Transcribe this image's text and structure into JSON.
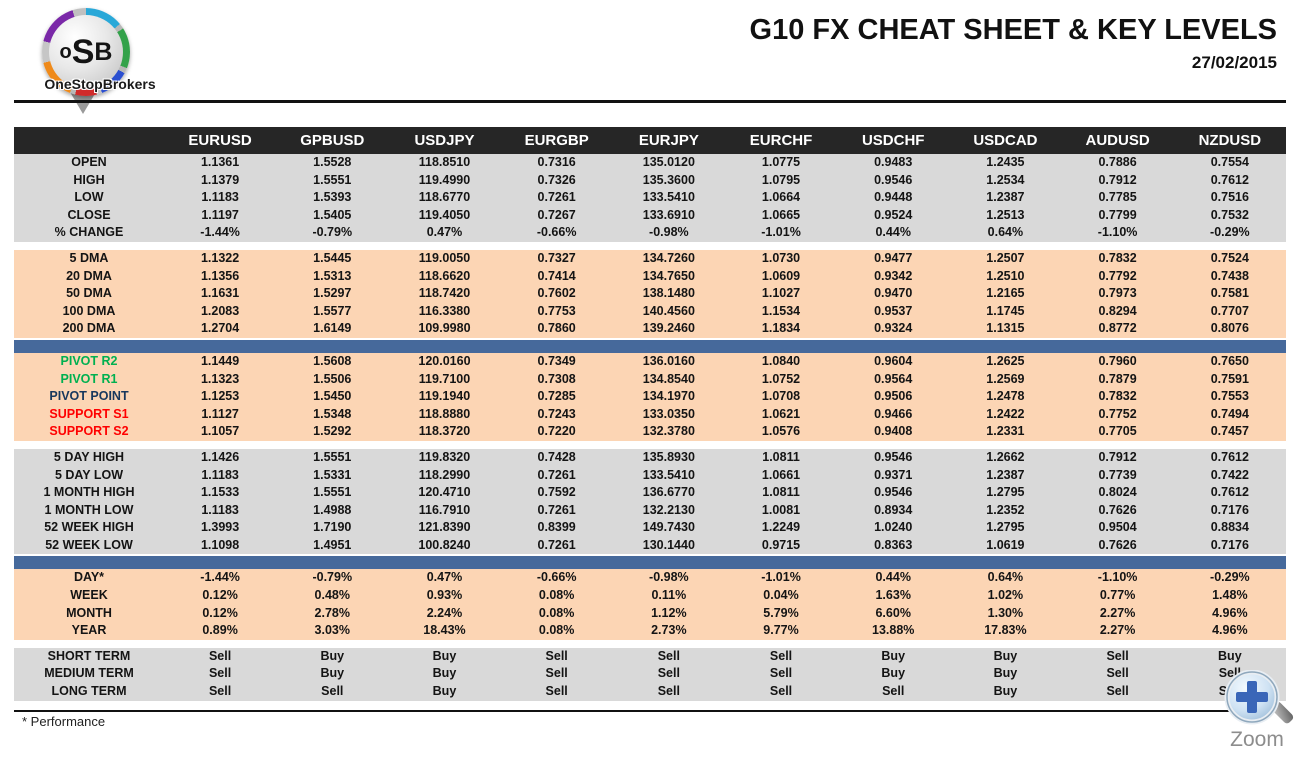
{
  "brand": {
    "logo_l1": "o",
    "logo_l2": "S",
    "logo_l3": "B",
    "name": "OneStopBrokers"
  },
  "header": {
    "title": "G10 FX CHEAT SHEET & KEY LEVELS",
    "date": "27/02/2015"
  },
  "footer": {
    "note": "* Performance",
    "zoom_label": "Zoom"
  },
  "colors": {
    "header-bg": "#262626",
    "gray-band": "#d9d9d9",
    "peach-band": "#fcd5b4",
    "divider-blue": "#46699b",
    "buy": "#00b050",
    "sell": "#ff0000",
    "navy": "#17375d"
  },
  "table": {
    "columns": [
      "EURUSD",
      "GPBUSD",
      "USDJPY",
      "EURGBP",
      "EURJPY",
      "EURCHF",
      "USDCHF",
      "USDCAD",
      "AUDUSD",
      "NZDUSD"
    ],
    "sections": [
      {
        "type": "rows",
        "bg": "gray",
        "rows": [
          {
            "label": "OPEN",
            "values": [
              "1.1361",
              "1.5528",
              "118.8510",
              "0.7316",
              "135.0120",
              "1.0775",
              "0.9483",
              "1.2435",
              "0.7886",
              "0.7554"
            ]
          },
          {
            "label": "HIGH",
            "values": [
              "1.1379",
              "1.5551",
              "119.4990",
              "0.7326",
              "135.3600",
              "1.0795",
              "0.9546",
              "1.2534",
              "0.7912",
              "0.7612"
            ]
          },
          {
            "label": "LOW",
            "values": [
              "1.1183",
              "1.5393",
              "118.6770",
              "0.7261",
              "133.5410",
              "1.0664",
              "0.9448",
              "1.2387",
              "0.7785",
              "0.7516"
            ]
          },
          {
            "label": "CLOSE",
            "values": [
              "1.1197",
              "1.5405",
              "119.4050",
              "0.7267",
              "133.6910",
              "1.0665",
              "0.9524",
              "1.2513",
              "0.7799",
              "0.7532"
            ]
          },
          {
            "label": "% CHANGE",
            "values": [
              "-1.44%",
              "-0.79%",
              "0.47%",
              "-0.66%",
              "-0.98%",
              "-1.01%",
              "0.44%",
              "0.64%",
              "-1.10%",
              "-0.29%"
            ]
          }
        ]
      },
      {
        "type": "gap"
      },
      {
        "type": "rows",
        "bg": "peach",
        "rows": [
          {
            "label": "5 DMA",
            "values": [
              "1.1322",
              "1.5445",
              "119.0050",
              "0.7327",
              "134.7260",
              "1.0730",
              "0.9477",
              "1.2507",
              "0.7832",
              "0.7524"
            ]
          },
          {
            "label": "20 DMA",
            "values": [
              "1.1356",
              "1.5313",
              "118.6620",
              "0.7414",
              "134.7650",
              "1.0609",
              "0.9342",
              "1.2510",
              "0.7792",
              "0.7438"
            ]
          },
          {
            "label": "50 DMA",
            "values": [
              "1.1631",
              "1.5297",
              "118.7420",
              "0.7602",
              "138.1480",
              "1.1027",
              "0.9470",
              "1.2165",
              "0.7973",
              "0.7581"
            ]
          },
          {
            "label": "100 DMA",
            "values": [
              "1.2083",
              "1.5577",
              "116.3380",
              "0.7753",
              "140.4560",
              "1.1534",
              "0.9537",
              "1.1745",
              "0.8294",
              "0.7707"
            ]
          },
          {
            "label": "200 DMA",
            "values": [
              "1.2704",
              "1.6149",
              "109.9980",
              "0.7860",
              "139.2460",
              "1.1834",
              "0.9324",
              "1.1315",
              "0.8772",
              "0.8076"
            ]
          }
        ]
      },
      {
        "type": "divider"
      },
      {
        "type": "rows",
        "bg": "peach",
        "rows": [
          {
            "label": "PIVOT R2",
            "label_class": "green",
            "values": [
              "1.1449",
              "1.5608",
              "120.0160",
              "0.7349",
              "136.0160",
              "1.0840",
              "0.9604",
              "1.2625",
              "0.7960",
              "0.7650"
            ]
          },
          {
            "label": "PIVOT R1",
            "label_class": "green",
            "values": [
              "1.1323",
              "1.5506",
              "119.7100",
              "0.7308",
              "134.8540",
              "1.0752",
              "0.9564",
              "1.2569",
              "0.7879",
              "0.7591"
            ]
          },
          {
            "label": "PIVOT POINT",
            "label_class": "navy",
            "values": [
              "1.1253",
              "1.5450",
              "119.1940",
              "0.7285",
              "134.1970",
              "1.0708",
              "0.9506",
              "1.2478",
              "0.7832",
              "0.7553"
            ]
          },
          {
            "label": "SUPPORT S1",
            "label_class": "red",
            "values": [
              "1.1127",
              "1.5348",
              "118.8880",
              "0.7243",
              "133.0350",
              "1.0621",
              "0.9466",
              "1.2422",
              "0.7752",
              "0.7494"
            ]
          },
          {
            "label": "SUPPORT S2",
            "label_class": "red",
            "values": [
              "1.1057",
              "1.5292",
              "118.3720",
              "0.7220",
              "132.3780",
              "1.0576",
              "0.9408",
              "1.2331",
              "0.7705",
              "0.7457"
            ]
          }
        ]
      },
      {
        "type": "gap"
      },
      {
        "type": "rows",
        "bg": "gray",
        "rows": [
          {
            "label": "5 DAY HIGH",
            "values": [
              "1.1426",
              "1.5551",
              "119.8320",
              "0.7428",
              "135.8930",
              "1.0811",
              "0.9546",
              "1.2662",
              "0.7912",
              "0.7612"
            ]
          },
          {
            "label": "5 DAY LOW",
            "values": [
              "1.1183",
              "1.5331",
              "118.2990",
              "0.7261",
              "133.5410",
              "1.0661",
              "0.9371",
              "1.2387",
              "0.7739",
              "0.7422"
            ]
          },
          {
            "label": "1 MONTH HIGH",
            "values": [
              "1.1533",
              "1.5551",
              "120.4710",
              "0.7592",
              "136.6770",
              "1.0811",
              "0.9546",
              "1.2795",
              "0.8024",
              "0.7612"
            ]
          },
          {
            "label": "1 MONTH LOW",
            "values": [
              "1.1183",
              "1.4988",
              "116.7910",
              "0.7261",
              "132.2130",
              "1.0081",
              "0.8934",
              "1.2352",
              "0.7626",
              "0.7176"
            ]
          },
          {
            "label": "52 WEEK HIGH",
            "values": [
              "1.3993",
              "1.7190",
              "121.8390",
              "0.8399",
              "149.7430",
              "1.2249",
              "1.0240",
              "1.2795",
              "0.9504",
              "0.8834"
            ]
          },
          {
            "label": "52 WEEK LOW",
            "values": [
              "1.1098",
              "1.4951",
              "100.8240",
              "0.7261",
              "130.1440",
              "0.9715",
              "0.8363",
              "1.0619",
              "0.7626",
              "0.7176"
            ]
          }
        ]
      },
      {
        "type": "divider"
      },
      {
        "type": "rows",
        "bg": "peach",
        "rows": [
          {
            "label": "DAY*",
            "values": [
              "-1.44%",
              "-0.79%",
              "0.47%",
              "-0.66%",
              "-0.98%",
              "-1.01%",
              "0.44%",
              "0.64%",
              "-1.10%",
              "-0.29%"
            ]
          },
          {
            "label": "WEEK",
            "values": [
              "0.12%",
              "0.48%",
              "0.93%",
              "0.08%",
              "0.11%",
              "0.04%",
              "1.63%",
              "1.02%",
              "0.77%",
              "1.48%"
            ]
          },
          {
            "label": "MONTH",
            "values": [
              "0.12%",
              "2.78%",
              "2.24%",
              "0.08%",
              "1.12%",
              "5.79%",
              "6.60%",
              "1.30%",
              "2.27%",
              "4.96%"
            ]
          },
          {
            "label": "YEAR",
            "values": [
              "0.89%",
              "3.03%",
              "18.43%",
              "0.08%",
              "2.73%",
              "9.77%",
              "13.88%",
              "17.83%",
              "2.27%",
              "4.96%"
            ]
          }
        ]
      },
      {
        "type": "gap"
      },
      {
        "type": "rows",
        "bg": "gray",
        "rows": [
          {
            "label": "SHORT TERM",
            "values": [
              "Sell",
              "Buy",
              "Buy",
              "Sell",
              "Sell",
              "Sell",
              "Buy",
              "Buy",
              "Sell",
              "Buy"
            ]
          },
          {
            "label": "MEDIUM TERM",
            "values": [
              "Sell",
              "Buy",
              "Buy",
              "Sell",
              "Sell",
              "Sell",
              "Buy",
              "Buy",
              "Sell",
              "Sell"
            ]
          },
          {
            "label": "LONG TERM",
            "values": [
              "Sell",
              "Sell",
              "Buy",
              "Sell",
              "Sell",
              "Sell",
              "Sell",
              "Buy",
              "Sell",
              "Sell"
            ]
          }
        ]
      }
    ]
  }
}
